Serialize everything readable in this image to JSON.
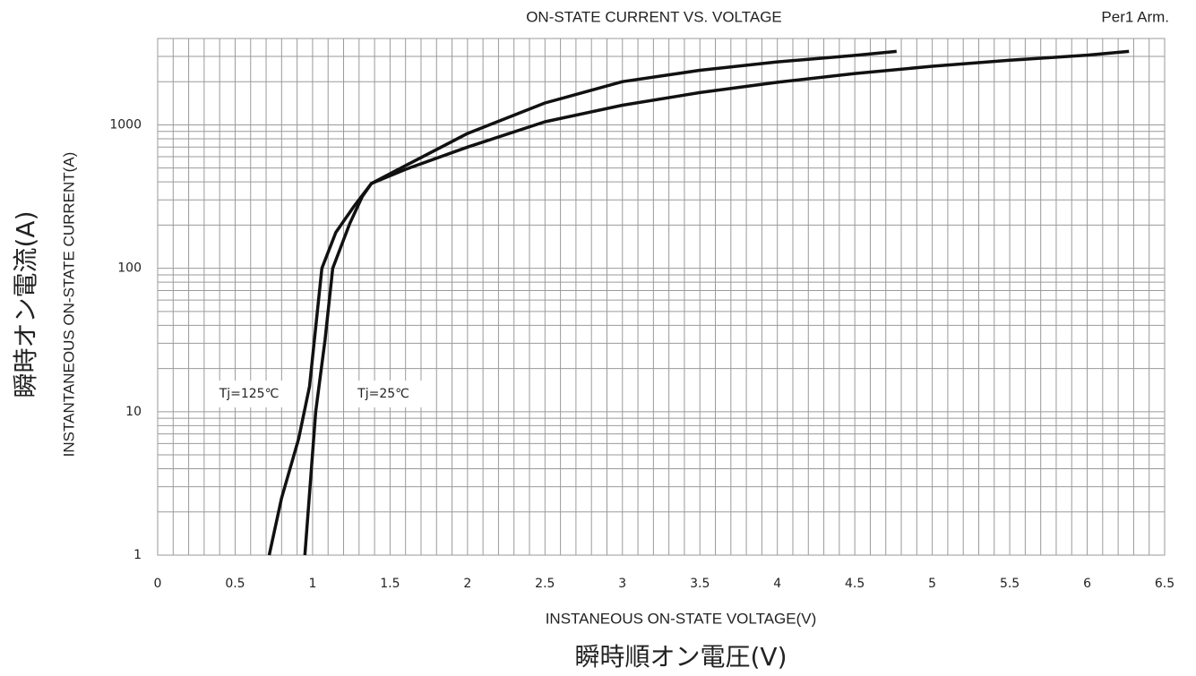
{
  "chart_data": {
    "type": "line",
    "title": "ON-STATE CURRENT VS. VOLTAGE",
    "subtitle": "Per1 Arm.",
    "x_label": "INSTANEOUS ON-STATE VOLTAGE(V)",
    "x_label_jp": "瞬時順オン電圧(V)",
    "y_label": "INSTANTANEOUS ON-STATE CURRENT(A)",
    "y_label_jp": "瞬時オン電流(A)",
    "xlim": [
      0,
      6.5
    ],
    "xticks": [
      0,
      0.5,
      1,
      1.5,
      2,
      2.5,
      3,
      3.5,
      4,
      4.5,
      5,
      5.5,
      6,
      6.5
    ],
    "ylim": [
      1,
      4000
    ],
    "yticks": [
      1,
      10,
      100,
      1000
    ],
    "log_y": true,
    "grid": true,
    "minor_grid": true,
    "series": [
      {
        "name": "Tj=125℃",
        "color": "#111111",
        "x": [
          0.72,
          0.8,
          0.91,
          0.98,
          1.06,
          1.15,
          1.27,
          1.38,
          1.6,
          2.0,
          2.5,
          3.0,
          3.5,
          4.0,
          4.5,
          5.0,
          5.5,
          6.0,
          6.27
        ],
        "values": [
          1,
          2.5,
          6.5,
          15,
          100,
          178,
          273,
          390,
          490,
          700,
          1050,
          1370,
          1680,
          1980,
          2280,
          2560,
          2820,
          3060,
          3250
        ]
      },
      {
        "name": "Tj=25℃",
        "color": "#111111",
        "x": [
          0.95,
          1.02,
          1.08,
          1.13,
          1.24,
          1.32,
          1.38,
          1.6,
          2.0,
          2.5,
          3.0,
          3.5,
          4.0,
          4.5,
          4.77
        ],
        "values": [
          1,
          10,
          31.6,
          100,
          205,
          316,
          390,
          520,
          870,
          1420,
          2000,
          2400,
          2750,
          3050,
          3250
        ]
      }
    ]
  }
}
